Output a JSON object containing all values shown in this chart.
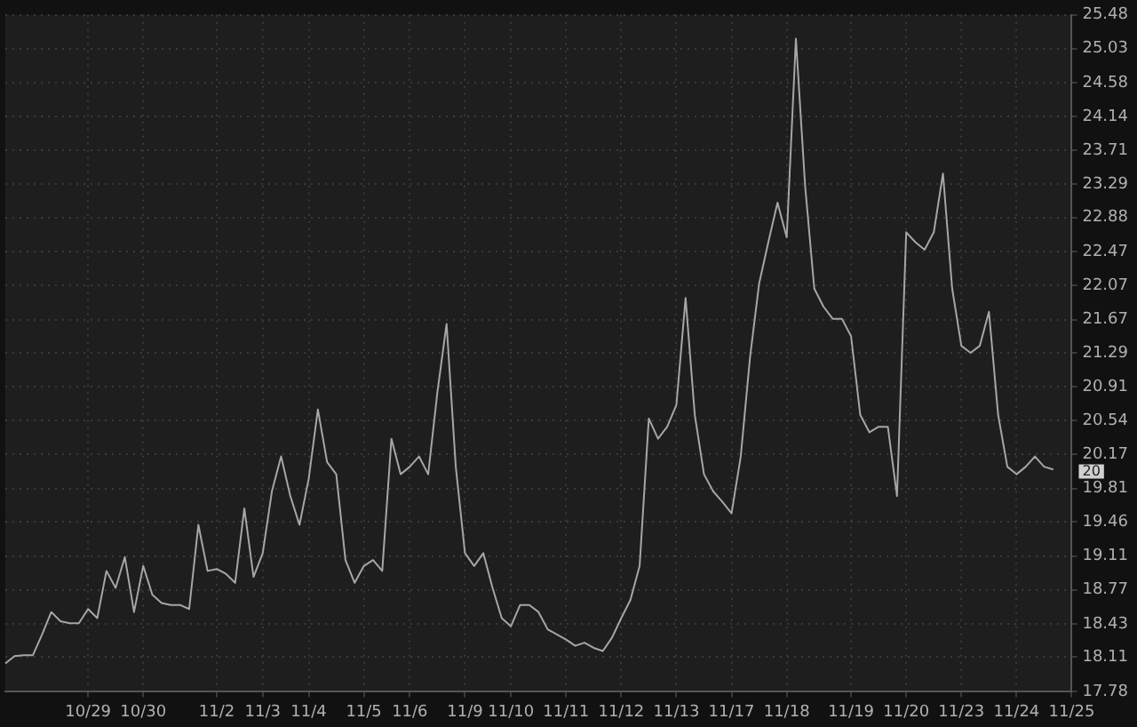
{
  "chart_data": {
    "type": "line",
    "log": true,
    "grid": true,
    "legend": false,
    "marker": "none",
    "line_style": "solid",
    "categories": [
      null,
      null,
      null,
      null,
      null,
      null,
      null,
      null,
      null,
      "10/29",
      null,
      null,
      null,
      null,
      null,
      "10/30",
      null,
      null,
      null,
      null,
      null,
      null,
      null,
      "11/2",
      null,
      null,
      null,
      null,
      "11/3",
      null,
      null,
      null,
      null,
      "11/4",
      null,
      null,
      null,
      null,
      null,
      "11/5",
      null,
      null,
      null,
      null,
      "11/6",
      null,
      null,
      null,
      null,
      null,
      "11/9",
      null,
      null,
      null,
      null,
      "11/10",
      null,
      null,
      null,
      null,
      null,
      "11/11",
      null,
      null,
      null,
      null,
      null,
      "11/12",
      null,
      null,
      null,
      null,
      null,
      "11/13",
      null,
      null,
      null,
      null,
      null,
      "11/17",
      null,
      null,
      null,
      null,
      null,
      "11/18",
      null,
      null,
      null,
      null,
      null,
      null,
      "11/19",
      null,
      null,
      null,
      null,
      null,
      "11/20",
      null,
      null,
      null,
      null,
      null,
      "11/23",
      null,
      null,
      null,
      null,
      null,
      "11/24",
      null,
      null,
      null,
      null,
      null,
      "11/25"
    ],
    "series": [
      {
        "color": "#a6a6a6",
        "values": [
          18.05,
          18.12,
          18.13,
          18.13,
          18.33,
          18.55,
          18.46,
          18.44,
          18.44,
          18.58,
          18.49,
          18.96,
          18.79,
          19.1,
          18.55,
          19.01,
          18.72,
          18.64,
          18.62,
          18.62,
          18.58,
          19.43,
          18.96,
          18.98,
          18.93,
          18.84,
          19.6,
          18.9,
          19.14,
          19.78,
          20.15,
          19.73,
          19.43,
          19.91,
          20.66,
          20.09,
          19.96,
          19.07,
          18.84,
          19.01,
          19.07,
          18.96,
          20.34,
          19.96,
          20.04,
          20.15,
          19.96,
          20.85,
          21.62,
          20.04,
          19.14,
          19.01,
          19.14,
          18.79,
          18.49,
          18.41,
          18.62,
          18.62,
          18.55,
          18.38,
          18.33,
          18.28,
          18.22,
          18.25,
          18.2,
          18.17,
          18.3,
          18.49,
          18.67,
          19.01,
          20.56,
          20.34,
          20.47,
          20.71,
          21.92,
          20.6,
          19.96,
          19.78,
          19.67,
          19.55,
          20.15,
          21.23,
          22.09,
          22.58,
          23.06,
          22.64,
          25.16,
          23.27,
          22.03,
          21.82,
          21.68,
          21.68,
          21.48,
          20.6,
          20.41,
          20.47,
          20.47,
          19.73,
          22.7,
          22.58,
          22.49,
          22.7,
          23.42,
          22.03,
          21.37,
          21.29,
          21.37,
          21.76,
          20.6,
          20.04,
          19.96,
          20.04,
          20.15,
          20.04,
          20.01,
          null,
          null
        ]
      }
    ],
    "ylim": [
      17.78,
      25.48
    ],
    "yticks": [
      17.78,
      18.11,
      18.43,
      18.77,
      19.11,
      19.46,
      19.81,
      20.17,
      20.54,
      20.91,
      21.29,
      21.67,
      22.07,
      22.47,
      22.88,
      23.29,
      23.71,
      24.14,
      24.58,
      25.03,
      25.48
    ],
    "annotations": [
      "20"
    ]
  }
}
